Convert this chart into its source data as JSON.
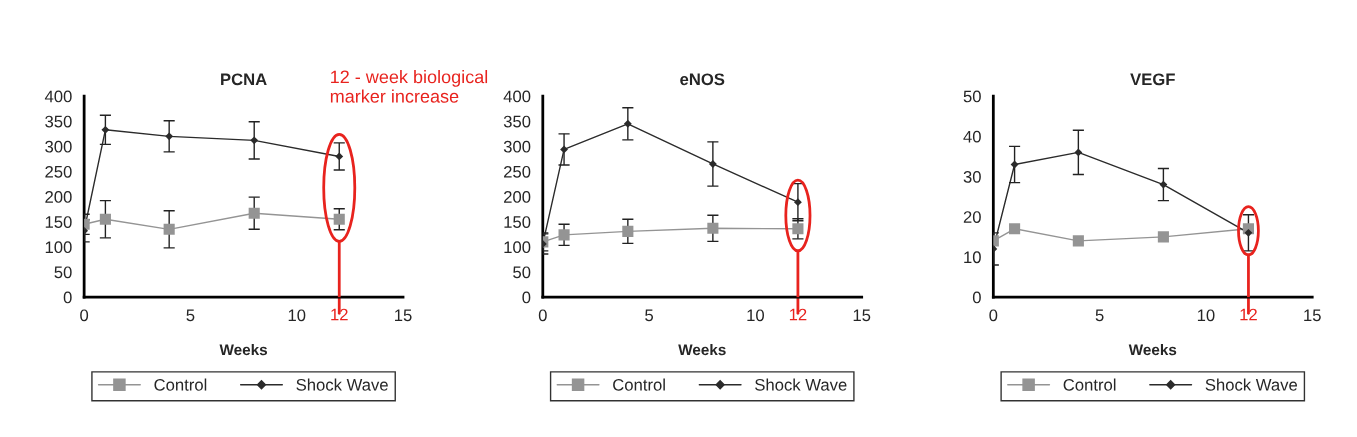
{
  "chart_data": [
    {
      "type": "line",
      "title": "PCNA",
      "xlabel": "Weeks",
      "x": [
        0,
        1,
        4,
        8,
        12
      ],
      "xlim": [
        0,
        15
      ],
      "xticks": [
        0,
        5,
        10,
        15
      ],
      "ylim": [
        0,
        400
      ],
      "yticks": [
        0,
        50,
        100,
        150,
        200,
        250,
        300,
        350,
        400
      ],
      "grid": false,
      "legend": "bottom",
      "series": [
        {
          "name": "Control",
          "color": "#949494",
          "marker": "square",
          "values": [
            145,
            155,
            135,
            167,
            155
          ],
          "errors": [
            20,
            37,
            37,
            32,
            21
          ]
        },
        {
          "name": "Shock Wave",
          "color": "#2b2b2b",
          "marker": "diamond",
          "values": [
            132,
            333,
            320,
            312,
            280
          ],
          "errors": [
            22,
            29,
            31,
            37,
            27
          ]
        }
      ],
      "ref_lines": [
        {
          "axis": "x",
          "value": 12,
          "label": "12",
          "color": "#e8231e"
        }
      ],
      "annotations": [
        "12 - week biological marker increase"
      ]
    },
    {
      "type": "line",
      "title": "eNOS",
      "xlabel": "Weeks",
      "x": [
        0,
        1,
        4,
        8,
        12
      ],
      "xlim": [
        0,
        15
      ],
      "xticks": [
        0,
        5,
        10,
        15
      ],
      "ylim": [
        0,
        400
      ],
      "yticks": [
        0,
        50,
        100,
        150,
        200,
        250,
        300,
        350,
        400
      ],
      "grid": false,
      "legend": "bottom",
      "series": [
        {
          "name": "Control",
          "color": "#949494",
          "marker": "square",
          "values": [
            110,
            124,
            131,
            137,
            136
          ],
          "errors": [
            18,
            21,
            24,
            26,
            20
          ]
        },
        {
          "name": "Shock Wave",
          "color": "#2b2b2b",
          "marker": "diamond",
          "values": [
            106,
            294,
            345,
            265,
            189
          ],
          "errors": [
            20,
            31,
            32,
            44,
            37
          ]
        }
      ],
      "ref_lines": [
        {
          "axis": "x",
          "value": 12,
          "label": "12",
          "color": "#e8231e"
        }
      ]
    },
    {
      "type": "line",
      "title": "VEGF",
      "xlabel": "Weeks",
      "x": [
        0,
        1,
        4,
        8,
        12
      ],
      "xlim": [
        0,
        15
      ],
      "xticks": [
        0,
        5,
        10,
        15
      ],
      "ylim": [
        0,
        50
      ],
      "yticks": [
        0,
        10,
        20,
        30,
        40,
        50
      ],
      "grid": false,
      "legend": "bottom",
      "series": [
        {
          "name": "Control",
          "color": "#949494",
          "marker": "square",
          "values": [
            14,
            17,
            14,
            15,
            17
          ]
        },
        {
          "name": "Shock Wave",
          "color": "#2b2b2b",
          "marker": "diamond",
          "values": [
            12,
            33,
            36,
            28,
            16
          ],
          "errors": [
            4,
            4.5,
            5.5,
            4,
            4.5
          ]
        }
      ],
      "ref_lines": [
        {
          "axis": "x",
          "value": 12,
          "label": "12",
          "color": "#e8231e"
        }
      ]
    }
  ]
}
